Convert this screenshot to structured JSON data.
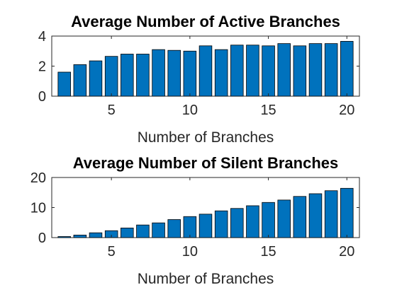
{
  "chart_data": [
    {
      "type": "bar",
      "title": "Average Number of Active Branches",
      "xlabel": "Number of Branches",
      "ylabel": "",
      "x": [
        2,
        3,
        4,
        5,
        6,
        7,
        8,
        9,
        10,
        11,
        12,
        13,
        14,
        15,
        16,
        17,
        18,
        19,
        20
      ],
      "values": [
        1.6,
        2.1,
        2.35,
        2.65,
        2.8,
        2.8,
        3.1,
        3.05,
        3.0,
        3.35,
        3.1,
        3.4,
        3.4,
        3.35,
        3.5,
        3.35,
        3.5,
        3.5,
        3.65
      ],
      "xlim": [
        1.2,
        20.8
      ],
      "ylim": [
        0,
        4
      ],
      "xticks": [
        5,
        10,
        15,
        20
      ],
      "yticks": [
        0,
        2,
        4
      ],
      "color": "#0072BD"
    },
    {
      "type": "bar",
      "title": "Average Number of Silent Branches",
      "xlabel": "Number of Branches",
      "ylabel": "",
      "x": [
        2,
        3,
        4,
        5,
        6,
        7,
        8,
        9,
        10,
        11,
        12,
        13,
        14,
        15,
        16,
        17,
        18,
        19,
        20
      ],
      "values": [
        0.35,
        0.85,
        1.6,
        2.3,
        3.2,
        4.2,
        4.9,
        6.0,
        7.0,
        7.8,
        8.9,
        9.7,
        10.6,
        11.7,
        12.5,
        13.7,
        14.6,
        15.6,
        16.4
      ],
      "xlim": [
        1.2,
        20.8
      ],
      "ylim": [
        0,
        20
      ],
      "xticks": [
        5,
        10,
        15,
        20
      ],
      "yticks": [
        0,
        10,
        20
      ],
      "color": "#0072BD"
    }
  ]
}
